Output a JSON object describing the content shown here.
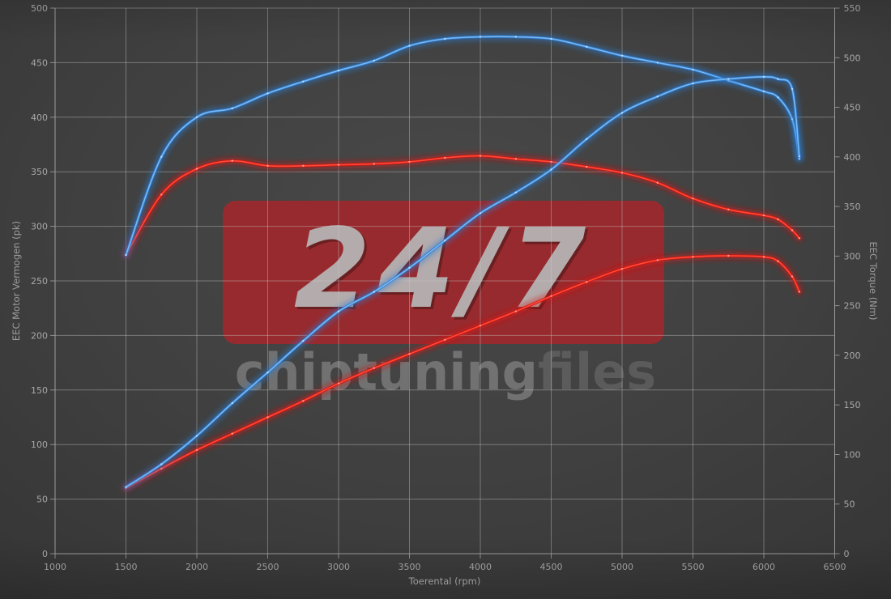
{
  "watermark": {
    "badge": "24/7",
    "brand_bold": "chiptuning",
    "brand_light": "files",
    "badge_color": "#9e282c"
  },
  "colors": {
    "background": "#3d3d3d",
    "grid": "#c8c8c8",
    "axis_line": "#aaaaaa",
    "tick_text": "#a8a8a8",
    "blue": "#2e7cd4",
    "red": "#d41510"
  },
  "chart_data": {
    "type": "line",
    "title": "",
    "xlabel": "Toerental (rpm)",
    "ylabel_left": "EEC Motor Vermogen (pk)",
    "ylabel_right": "EEC Torque (Nm)",
    "x_range": [
      1000,
      6500
    ],
    "y_left_range": [
      0,
      500
    ],
    "y_right_range": [
      0,
      550
    ],
    "x_ticks": [
      1000,
      1500,
      2000,
      2500,
      3000,
      3500,
      4000,
      4500,
      5000,
      5500,
      6000,
      6500
    ],
    "y_left_ticks": [
      0,
      50,
      100,
      150,
      200,
      250,
      300,
      350,
      400,
      450,
      500
    ],
    "y_right_ticks": [
      0,
      50,
      100,
      150,
      200,
      250,
      300,
      350,
      400,
      450,
      500,
      550
    ],
    "grid": true,
    "legend": "none",
    "x": [
      1500,
      1750,
      2000,
      2250,
      2500,
      2750,
      3000,
      3250,
      3500,
      3750,
      4000,
      4250,
      4500,
      4750,
      5000,
      5250,
      5500,
      5750,
      6000,
      6100,
      6200,
      6250
    ],
    "series": [
      {
        "name": "red-torque",
        "axis": "right",
        "unit": "Nm",
        "color": "#d41510",
        "core": "#ff4a38",
        "marker": "#ffc0b8",
        "values": [
          301,
          362,
          388,
          396,
          391,
          391,
          392,
          393,
          395,
          399,
          401,
          398,
          395,
          390,
          384,
          374,
          358,
          347,
          341,
          337,
          326,
          318
        ]
      },
      {
        "name": "red-power",
        "axis": "left",
        "unit": "pk",
        "color": "#d41510",
        "core": "#ff4a38",
        "marker": "#ffc0b8",
        "values": [
          60,
          78,
          95,
          110,
          125,
          140,
          156,
          170,
          183,
          196,
          209,
          222,
          236,
          249,
          261,
          269,
          272,
          273,
          272,
          268,
          254,
          240
        ]
      },
      {
        "name": "blue-torque",
        "axis": "right",
        "unit": "Nm",
        "color": "#2e7cd4",
        "core": "#79b8f2",
        "marker": "#d8ebff",
        "values": [
          301,
          400,
          440,
          449,
          464,
          476,
          487,
          497,
          512,
          519,
          521,
          521,
          519,
          511,
          502,
          495,
          488,
          477,
          466,
          460,
          438,
          398
        ]
      },
      {
        "name": "blue-power",
        "axis": "left",
        "unit": "pk",
        "color": "#2e7cd4",
        "core": "#79b8f2",
        "marker": "#d8ebff",
        "values": [
          61,
          82,
          108,
          138,
          166,
          195,
          222,
          240,
          262,
          287,
          312,
          331,
          352,
          380,
          404,
          419,
          431,
          435,
          437,
          435,
          426,
          364
        ]
      }
    ]
  }
}
